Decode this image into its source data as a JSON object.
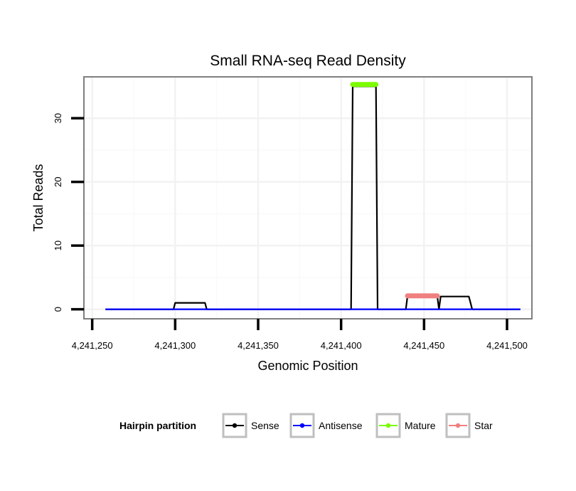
{
  "chart_data": {
    "type": "line",
    "title": "Small RNA-seq Read Density",
    "xlabel": "Genomic Position",
    "ylabel": "Total Reads",
    "xlim": [
      4241245,
      4241515
    ],
    "ylim": [
      -1.5,
      36.5
    ],
    "x_ticks": [
      4241250,
      4241300,
      4241350,
      4241400,
      4241450,
      4241500
    ],
    "x_tick_labels": [
      "4,241,250",
      "4,241,300",
      "4,241,350",
      "4,241,400",
      "4,241,450",
      "4,241,500"
    ],
    "y_ticks": [
      0,
      10,
      20,
      30
    ],
    "y_tick_labels": [
      "0",
      "10",
      "20",
      "30"
    ],
    "grid": true,
    "legend": {
      "title": "Hairpin partition",
      "position": "bottom",
      "entries": [
        {
          "name": "Sense",
          "color": "#000000"
        },
        {
          "name": "Antisense",
          "color": "#0000ff"
        },
        {
          "name": "Mature",
          "color": "#7cfc00"
        },
        {
          "name": "Star",
          "color": "#f08080"
        }
      ]
    },
    "series": [
      {
        "name": "Sense",
        "color": "#000000",
        "x": [
          4241258,
          4241299,
          4241300,
          4241318,
          4241319,
          4241406,
          4241407,
          4241421,
          4241422,
          4241439,
          4241440,
          4241458,
          4241459,
          4241460,
          4241477,
          4241478,
          4241479,
          4241508
        ],
        "y": [
          0,
          0,
          1,
          1,
          0,
          0,
          35,
          35,
          0,
          0,
          2,
          2,
          0,
          2,
          2,
          1,
          0,
          0
        ]
      },
      {
        "name": "Antisense",
        "color": "#0000ff",
        "x": [
          4241258,
          4241508
        ],
        "y": [
          0,
          0
        ]
      },
      {
        "name": "Mature",
        "color": "#7cfc00",
        "x": [
          4241407,
          4241421
        ],
        "y": [
          35.3,
          35.3
        ]
      },
      {
        "name": "Star",
        "color": "#f08080",
        "x": [
          4241440,
          4241458
        ],
        "y": [
          2.1,
          2.1
        ]
      }
    ]
  }
}
